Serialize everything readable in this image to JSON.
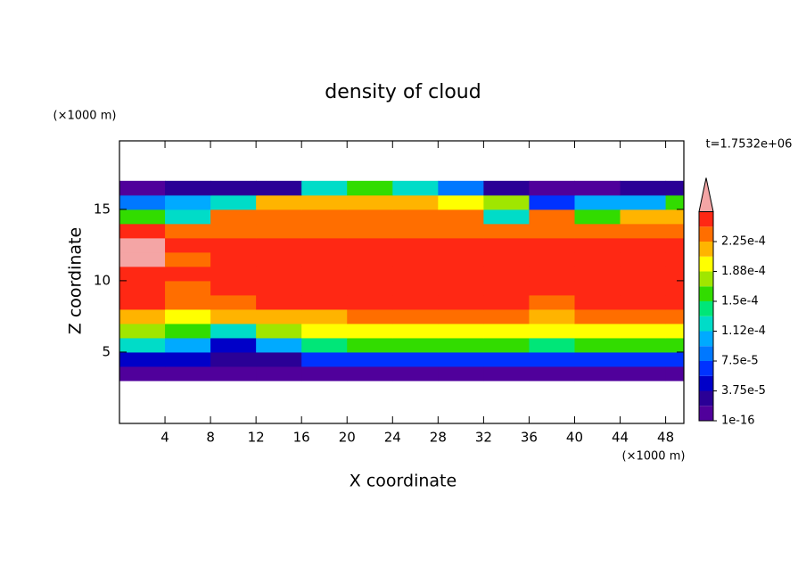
{
  "chart_data": {
    "type": "contour",
    "title": "density of cloud",
    "xlabel": "X coordinate",
    "ylabel": "Z coordinate",
    "x_unit": "(×1000 m)",
    "y_unit": "(×1000 m)",
    "time_label": "t=1.7532e+06",
    "xlim": [
      0,
      49.6
    ],
    "ylim": [
      0,
      19.8
    ],
    "xticks": [
      4,
      8,
      12,
      16,
      20,
      24,
      28,
      32,
      36,
      40,
      44,
      48
    ],
    "yticks": [
      5,
      10,
      15
    ],
    "x": [
      2,
      6,
      10,
      14,
      18,
      22,
      26,
      30,
      34,
      38,
      42,
      46,
      50
    ],
    "z": [
      3.5,
      4.5,
      5.5,
      6.5,
      7.5,
      8.5,
      9.5,
      10.5,
      11.5,
      12.5,
      13.5,
      14.5,
      15.5,
      16.5
    ],
    "values": [
      [
        1e-05,
        1e-05,
        1e-05,
        1e-05,
        1e-05,
        1e-05,
        1e-05,
        1e-05,
        1e-05,
        1e-05,
        1e-05,
        1e-05,
        1e-05
      ],
      [
        5e-05,
        4e-05,
        2e-05,
        3e-05,
        6e-05,
        7e-05,
        7e-05,
        7e-05,
        7e-05,
        6e-05,
        7e-05,
        7e-05,
        7e-05
      ],
      [
        0.00013,
        0.0001,
        5e-05,
        0.00011,
        0.00014,
        0.00015,
        0.00015,
        0.00015,
        0.00015,
        0.00014,
        0.00015,
        0.00015,
        0.00015
      ],
      [
        0.00018,
        0.00015,
        0.00012,
        0.00018,
        0.00019,
        0.0002,
        0.0002,
        0.0002,
        0.0002,
        0.00019,
        0.0002,
        0.0002,
        0.0002
      ],
      [
        0.00022,
        0.0002,
        0.00021,
        0.00022,
        0.00022,
        0.00023,
        0.00023,
        0.00023,
        0.00023,
        0.00022,
        0.00023,
        0.00023,
        0.00023
      ],
      [
        0.000245,
        0.00023,
        0.00024,
        0.000245,
        0.000245,
        0.000245,
        0.000245,
        0.000245,
        0.000245,
        0.00024,
        0.000245,
        0.000245,
        0.000245
      ],
      [
        0.00025,
        0.00024,
        0.00025,
        0.00025,
        0.00025,
        0.00025,
        0.00025,
        0.00025,
        0.00025,
        0.00025,
        0.00025,
        0.00025,
        0.00025
      ],
      [
        0.00025,
        0.00025,
        0.00025,
        0.00025,
        0.00025,
        0.00025,
        0.00025,
        0.00025,
        0.00025,
        0.00025,
        0.00025,
        0.00025,
        0.00025
      ],
      [
        0.00027,
        0.00024,
        0.00025,
        0.00025,
        0.00025,
        0.00025,
        0.00025,
        0.00025,
        0.00025,
        0.00025,
        0.00025,
        0.00025,
        0.00025
      ],
      [
        0.00027,
        0.00025,
        0.00025,
        0.00025,
        0.00025,
        0.00025,
        0.00025,
        0.00025,
        0.00025,
        0.00025,
        0.00025,
        0.00025,
        0.00025
      ],
      [
        0.00025,
        0.00024,
        0.000235,
        0.000235,
        0.000235,
        0.000235,
        0.000235,
        0.000235,
        0.000235,
        0.000235,
        0.000235,
        0.000235,
        0.000235
      ],
      [
        0.00016,
        0.00012,
        0.00023,
        0.00023,
        0.00023,
        0.00023,
        0.00023,
        0.00023,
        0.00012,
        0.00023,
        0.00015,
        0.00022,
        0.00022
      ],
      [
        9e-05,
        0.00011,
        0.00013,
        0.00022,
        0.00022,
        0.00022,
        0.00022,
        0.0002,
        0.00018,
        6e-05,
        0.0001,
        0.0001,
        0.00015
      ],
      [
        1e-05,
        2e-05,
        2e-05,
        3e-05,
        0.00012,
        0.00015,
        0.00013,
        9e-05,
        3e-05,
        1e-05,
        1e-05,
        2e-05,
        2e-05
      ]
    ],
    "levels": [
      1e-16,
      1.875e-05,
      3.75e-05,
      5.625e-05,
      7.5e-05,
      9.375e-05,
      0.0001125,
      0.00013125,
      0.00015,
      0.00016875,
      0.0001875,
      0.00020625,
      0.000225,
      0.00024375,
      0.0002625
    ],
    "colors": [
      "#50009b",
      "#2a0096",
      "#0000c8",
      "#0032ff",
      "#0078ff",
      "#00aaff",
      "#00dcc8",
      "#00e678",
      "#32dc00",
      "#a0e600",
      "#ffff00",
      "#ffb400",
      "#ff6e00",
      "#ff2814"
    ],
    "over_color": "#f4a5a5",
    "cbar_ticks": [
      {
        "value": 1e-16,
        "label": "1e-16"
      },
      {
        "value": 3.75e-05,
        "label": "3.75e-5"
      },
      {
        "value": 7.5e-05,
        "label": "7.5e-5"
      },
      {
        "value": 0.0001125,
        "label": "1.12e-4"
      },
      {
        "value": 0.00015,
        "label": "1.5e-4"
      },
      {
        "value": 0.0001875,
        "label": "1.88e-4"
      },
      {
        "value": 0.000225,
        "label": "2.25e-4"
      }
    ]
  }
}
